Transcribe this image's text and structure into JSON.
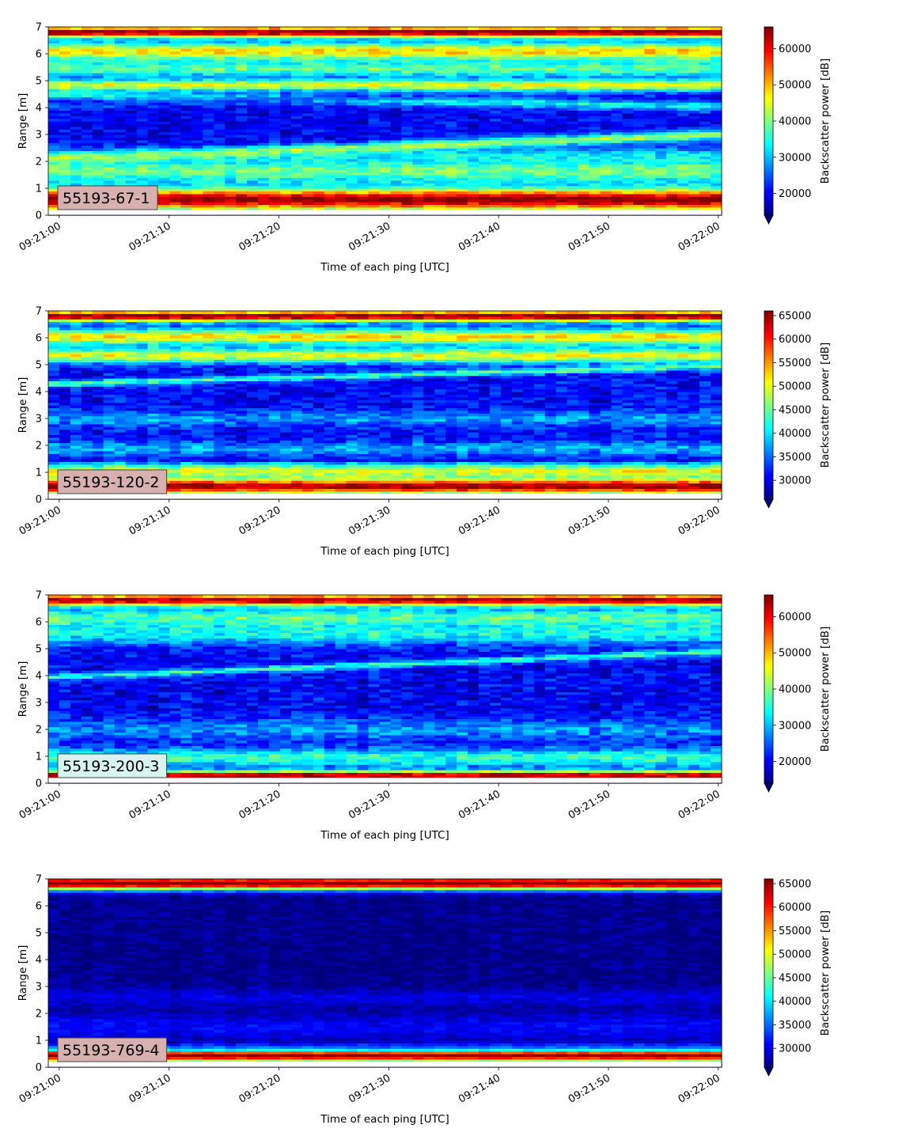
{
  "figure": {
    "x_axis_label": "Time of each ping [UTC]",
    "y_axis_label": "Range [m]",
    "colorbar_label": "Backscatter power [dB]",
    "x_tick_labels": [
      "09:21:00",
      "09:21:10",
      "09:21:20",
      "09:21:30",
      "09:21:40",
      "09:21:50",
      "09:22:00"
    ],
    "y_tick_labels": [
      "0",
      "1",
      "2",
      "3",
      "4",
      "5",
      "6",
      "7"
    ]
  },
  "chart_data": [
    {
      "type": "heatmap",
      "panel_label": "55193-67-1",
      "panel_label_color": "#d8b0b0",
      "xlabel": "Time of each ping [UTC]",
      "ylabel": "Range [m]",
      "x_start": "09:21:00",
      "x_end": "09:22:00",
      "xlim_seconds": [
        -1,
        60.3
      ],
      "ylim": [
        0,
        7
      ],
      "colorbar": {
        "label": "Backscatter power [dB]",
        "min": 14000,
        "max": 66000,
        "ticks": [
          20000,
          30000,
          40000,
          50000,
          60000
        ],
        "extend": "min",
        "colormap": "jet"
      },
      "bands": [
        {
          "type": "flat",
          "r": 0.6,
          "w": 0.42,
          "v": 66000
        },
        {
          "type": "flat",
          "r": 1.7,
          "w": 0.55,
          "v": 40000
        },
        {
          "type": "flat",
          "r": 2.15,
          "w": 0.3,
          "v": 33000
        },
        {
          "type": "line",
          "r0": 2.1,
          "r1": 3.0,
          "w": 0.18,
          "v": 42000
        },
        {
          "type": "line",
          "r0": 4.5,
          "r1": 4.05,
          "w": 0.18,
          "v": 33000
        },
        {
          "type": "line",
          "r0": 4.05,
          "r1": 4.8,
          "w": 0.14,
          "v": 24000
        },
        {
          "type": "flat",
          "r": 4.85,
          "w": 0.22,
          "v": 45000
        },
        {
          "type": "flat",
          "r": 5.45,
          "w": 0.3,
          "v": 38000
        },
        {
          "type": "flat",
          "r": 6.1,
          "w": 0.35,
          "v": 48000
        },
        {
          "type": "flat",
          "r": 6.82,
          "w": 0.2,
          "v": 66000
        }
      ],
      "base_level": 20000,
      "noise": 3500
    },
    {
      "type": "heatmap",
      "panel_label": "55193-120-2",
      "panel_label_color": "#d8b0b0",
      "xlabel": "Time of each ping [UTC]",
      "ylabel": "Range [m]",
      "x_start": "09:21:00",
      "x_end": "09:22:00",
      "xlim_seconds": [
        -1,
        60.3
      ],
      "ylim": [
        0,
        7
      ],
      "colorbar": {
        "label": "Backscatter power [dB]",
        "min": 26000,
        "max": 66000,
        "ticks": [
          30000,
          35000,
          40000,
          45000,
          50000,
          55000,
          60000,
          65000
        ],
        "extend": "min",
        "colormap": "jet"
      },
      "bands": [
        {
          "type": "flat",
          "r": 0.5,
          "w": 0.3,
          "v": 66000
        },
        {
          "type": "flat",
          "r": 1.05,
          "w": 0.3,
          "v": 50000
        },
        {
          "type": "flat",
          "r": 1.48,
          "w": 0.06,
          "v": 30000
        },
        {
          "type": "flat",
          "r": 1.9,
          "w": 0.25,
          "v": 38000
        },
        {
          "type": "flat",
          "r": 3.0,
          "w": 0.3,
          "v": 37000
        },
        {
          "type": "line",
          "r0": 4.3,
          "r1": 4.95,
          "w": 0.12,
          "v": 44000
        },
        {
          "type": "flat",
          "r": 5.35,
          "w": 0.28,
          "v": 50000
        },
        {
          "type": "flat",
          "r": 6.05,
          "w": 0.3,
          "v": 52000
        },
        {
          "type": "flat",
          "r": 6.82,
          "w": 0.2,
          "v": 66000
        }
      ],
      "base_level": 31000,
      "noise": 3000
    },
    {
      "type": "heatmap",
      "panel_label": "55193-200-3",
      "panel_label_color": "#d8f4f0",
      "xlabel": "Time of each ping [UTC]",
      "ylabel": "Range [m]",
      "x_start": "09:21:00",
      "x_end": "09:22:00",
      "xlim_seconds": [
        -1,
        60.3
      ],
      "ylim": [
        0,
        7
      ],
      "colorbar": {
        "label": "Backscatter power [dB]",
        "min": 14000,
        "max": 66000,
        "ticks": [
          20000,
          30000,
          40000,
          50000,
          60000
        ],
        "extend": "min",
        "colormap": "jet"
      },
      "bands": [
        {
          "type": "flat",
          "r": 0.3,
          "w": 0.18,
          "v": 66000
        },
        {
          "type": "flat",
          "r": 0.95,
          "w": 0.35,
          "v": 36000
        },
        {
          "type": "flat",
          "r": 2.0,
          "w": 0.4,
          "v": 28000
        },
        {
          "type": "line",
          "r0": 3.95,
          "r1": 4.9,
          "w": 0.12,
          "v": 36000
        },
        {
          "type": "flat",
          "r": 5.6,
          "w": 0.45,
          "v": 34000
        },
        {
          "type": "flat",
          "r": 6.15,
          "w": 0.35,
          "v": 38000
        },
        {
          "type": "flat",
          "r": 6.82,
          "w": 0.22,
          "v": 64000
        }
      ],
      "base_level": 20000,
      "noise": 4000
    },
    {
      "type": "heatmap",
      "panel_label": "55193-769-4",
      "panel_label_color": "#d8b0b0",
      "xlabel": "Time of each ping [UTC]",
      "ylabel": "Range [m]",
      "x_start": "09:21:00",
      "x_end": "09:22:00",
      "xlim_seconds": [
        -1,
        60.3
      ],
      "ylim": [
        0,
        7
      ],
      "colorbar": {
        "label": "Backscatter power [dB]",
        "min": 26000,
        "max": 66000,
        "ticks": [
          30000,
          35000,
          40000,
          45000,
          50000,
          55000,
          60000,
          65000
        ],
        "extend": "min",
        "colormap": "jet"
      },
      "bands": [
        {
          "type": "flat",
          "r": 0.45,
          "w": 0.25,
          "v": 66000
        },
        {
          "type": "flat",
          "r": 0.75,
          "w": 0.12,
          "v": 36000
        },
        {
          "type": "flat",
          "r": 1.5,
          "w": 0.5,
          "v": 31000
        },
        {
          "type": "flat",
          "r": 2.6,
          "w": 0.3,
          "v": 30000
        },
        {
          "type": "flat",
          "r": 6.85,
          "w": 0.25,
          "v": 66000
        }
      ],
      "base_level": 26500,
      "noise": 1500
    }
  ]
}
